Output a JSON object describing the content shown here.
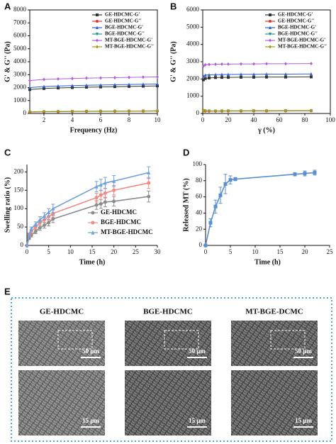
{
  "chart_data": [
    {
      "type": "line",
      "label": "A",
      "xlabel": "Frequency (Hz)",
      "ylabel": "G' & G'' (Pa)",
      "x": [
        1,
        2,
        3,
        4,
        5,
        6,
        7,
        8,
        9,
        10
      ],
      "xlim": [
        1,
        10
      ],
      "xticks": [
        2,
        4,
        6,
        8,
        10
      ],
      "ylim": [
        0,
        8000
      ],
      "yticks": [
        0,
        1000,
        2000,
        3000,
        4000,
        5000,
        6000,
        7000,
        8000
      ],
      "frame": true,
      "legend": "upper right",
      "series": [
        {
          "name": "GE-HDCMC-G'",
          "color": "#333333",
          "marker": "square",
          "values": [
            1850,
            1930,
            1970,
            2000,
            2030,
            2050,
            2070,
            2090,
            2110,
            2130
          ]
        },
        {
          "name": "GE-HDCMC-G''",
          "color": "#e8322a",
          "marker": "circle",
          "values": [
            110,
            130,
            140,
            150,
            160,
            165,
            170,
            175,
            180,
            185
          ]
        },
        {
          "name": "BGE-HDCMC-G'",
          "color": "#2f5fd0",
          "marker": "triangle",
          "values": [
            2000,
            2080,
            2120,
            2150,
            2180,
            2200,
            2220,
            2240,
            2260,
            2280
          ]
        },
        {
          "name": "BGE-HDCMC-G''",
          "color": "#1a9c8c",
          "marker": "triangle-down",
          "values": [
            120,
            140,
            150,
            160,
            170,
            175,
            180,
            185,
            190,
            195
          ]
        },
        {
          "name": "MT-BGE-HDCMC-G'",
          "color": "#b05fd8",
          "marker": "diamond",
          "values": [
            2550,
            2630,
            2670,
            2700,
            2730,
            2750,
            2770,
            2790,
            2810,
            2830
          ]
        },
        {
          "name": "MT-BGE-HDCMC-G''",
          "color": "#a89a10",
          "marker": "diamond",
          "values": [
            130,
            150,
            160,
            170,
            180,
            185,
            190,
            195,
            200,
            210
          ]
        }
      ]
    },
    {
      "type": "line",
      "label": "B",
      "xlabel": "γ (%)",
      "ylabel": "G' & G'' (Pa)",
      "x": [
        0.5,
        2,
        5,
        10,
        15,
        20,
        30,
        40,
        50,
        65,
        85
      ],
      "xlim": [
        0,
        100
      ],
      "xticks": [
        0,
        20,
        40,
        60,
        80,
        100
      ],
      "ylim": [
        0,
        6000
      ],
      "yticks": [
        0,
        1000,
        2000,
        3000,
        4000,
        5000,
        6000
      ],
      "frame": true,
      "legend": "upper right",
      "series": [
        {
          "name": "GE-HDCMC-G'",
          "color": "#333333",
          "marker": "square",
          "values": [
            1950,
            2030,
            2060,
            2080,
            2090,
            2090,
            2100,
            2100,
            2110,
            2110,
            2120
          ]
        },
        {
          "name": "GE-HDCMC-G''",
          "color": "#e8322a",
          "marker": "circle",
          "values": [
            150,
            140,
            135,
            135,
            135,
            140,
            140,
            145,
            145,
            150,
            155
          ]
        },
        {
          "name": "BGE-HDCMC-G'",
          "color": "#2f5fd0",
          "marker": "triangle",
          "values": [
            2150,
            2220,
            2240,
            2250,
            2260,
            2260,
            2270,
            2270,
            2280,
            2280,
            2290
          ]
        },
        {
          "name": "BGE-HDCMC-G''",
          "color": "#1a9c8c",
          "marker": "triangle-down",
          "values": [
            160,
            150,
            145,
            145,
            145,
            150,
            150,
            155,
            155,
            160,
            165
          ]
        },
        {
          "name": "MT-BGE-HDCMC-G'",
          "color": "#b05fd8",
          "marker": "diamond",
          "values": [
            2750,
            2820,
            2840,
            2850,
            2860,
            2860,
            2870,
            2870,
            2880,
            2880,
            2890
          ]
        },
        {
          "name": "MT-BGE-HDCMC-G''",
          "color": "#a89a10",
          "marker": "diamond",
          "values": [
            170,
            160,
            155,
            155,
            155,
            160,
            160,
            165,
            165,
            170,
            175
          ]
        }
      ]
    },
    {
      "type": "line",
      "label": "C",
      "xlabel": "Time (h)",
      "ylabel": "Swelling ratio (%)",
      "x": [
        0,
        0.5,
        1,
        2,
        3,
        4,
        5,
        6,
        16,
        17,
        18,
        20,
        28
      ],
      "xlim": [
        0,
        30
      ],
      "xticks": [
        0,
        5,
        10,
        15,
        20,
        25,
        30
      ],
      "ylim": [
        0,
        220
      ],
      "yticks": [
        0,
        50,
        100,
        150,
        200
      ],
      "frame": false,
      "legend": "lower right",
      "series": [
        {
          "name": "GE-HDCMC",
          "color": "#8c8c8c",
          "marker": "circle",
          "values": [
            0,
            20,
            28,
            38,
            48,
            55,
            62,
            72,
            110,
            113,
            118,
            120,
            133
          ],
          "errors": [
            0,
            4,
            5,
            6,
            7,
            8,
            9,
            10,
            12,
            12,
            13,
            13,
            15
          ]
        },
        {
          "name": "BGE-HDCMC",
          "color": "#f08a84",
          "marker": "circle",
          "values": [
            0,
            28,
            38,
            50,
            62,
            70,
            78,
            87,
            130,
            137,
            142,
            150,
            170
          ],
          "errors": [
            0,
            4,
            5,
            6,
            7,
            8,
            9,
            10,
            12,
            12,
            13,
            13,
            15
          ]
        },
        {
          "name": "MT-BGE-HDCMC",
          "color": "#6fa0dc",
          "marker": "triangle",
          "values": [
            0,
            30,
            45,
            58,
            70,
            80,
            90,
            100,
            160,
            165,
            170,
            175,
            198
          ],
          "errors": [
            0,
            4,
            5,
            6,
            8,
            9,
            10,
            12,
            14,
            15,
            15,
            15,
            16
          ]
        }
      ]
    },
    {
      "type": "line",
      "label": "D",
      "xlabel": "Time (h)",
      "ylabel": "Released MT (%)",
      "x": [
        0,
        1,
        2,
        3,
        4,
        5,
        6,
        18,
        20,
        22
      ],
      "xlim": [
        0,
        25
      ],
      "xticks": [
        0,
        5,
        10,
        15,
        20,
        25
      ],
      "ylim": [
        0,
        100
      ],
      "yticks": [
        0,
        20,
        40,
        60,
        80,
        100
      ],
      "frame": false,
      "series": [
        {
          "color": "#5a8fd0",
          "marker": "square",
          "values": [
            0,
            28,
            48,
            62,
            76,
            81,
            82,
            88,
            89,
            90
          ],
          "errors": [
            0,
            5,
            8,
            10,
            12,
            5,
            2,
            2,
            3,
            3
          ]
        }
      ]
    }
  ],
  "panel_e": {
    "label": "E",
    "columns": [
      "GE-HDCMC",
      "BGE-HDCMC",
      "MT-BGE-DCMC"
    ],
    "scale_top": "50 μm",
    "scale_bottom": "15 μm"
  }
}
